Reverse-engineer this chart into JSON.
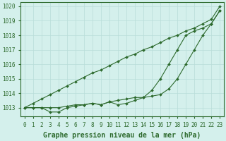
{
  "hours": [
    0,
    1,
    2,
    3,
    4,
    5,
    6,
    7,
    8,
    9,
    10,
    11,
    12,
    13,
    14,
    15,
    16,
    17,
    18,
    19,
    20,
    21,
    22,
    23
  ],
  "line1": [
    1013.0,
    1013.0,
    1013.0,
    1013.0,
    1013.0,
    1013.1,
    1013.2,
    1013.2,
    1013.3,
    1013.2,
    1013.4,
    1013.5,
    1013.6,
    1013.7,
    1013.7,
    1013.8,
    1013.9,
    1014.3,
    1015.0,
    1016.0,
    1017.0,
    1018.0,
    1018.8,
    1019.7
  ],
  "line2": [
    1013.0,
    1013.0,
    1013.0,
    1012.7,
    1012.7,
    1013.0,
    1013.1,
    1013.2,
    1013.3,
    1013.2,
    1013.4,
    1013.2,
    1013.3,
    1013.5,
    1013.7,
    1014.2,
    1015.0,
    1016.0,
    1017.0,
    1018.0,
    1018.3,
    1018.5,
    1018.8,
    1019.7
  ],
  "line3": [
    1013.0,
    1013.3,
    1013.6,
    1013.9,
    1014.2,
    1014.5,
    1014.8,
    1015.1,
    1015.4,
    1015.6,
    1015.9,
    1016.2,
    1016.5,
    1016.7,
    1017.0,
    1017.2,
    1017.5,
    1017.8,
    1018.0,
    1018.3,
    1018.5,
    1018.8,
    1019.1,
    1020.0
  ],
  "line_color": "#2d6a2d",
  "bg_color": "#d4f0ec",
  "grid_color": "#b8ddd8",
  "xlabel": "Graphe pression niveau de la mer (hPa)",
  "ylim": [
    1012.4,
    1020.3
  ],
  "xlim": [
    -0.5,
    23.5
  ],
  "yticks": [
    1013,
    1014,
    1015,
    1016,
    1017,
    1018,
    1019,
    1020
  ],
  "xticks": [
    0,
    1,
    2,
    3,
    4,
    5,
    6,
    7,
    8,
    9,
    10,
    11,
    12,
    13,
    14,
    15,
    16,
    17,
    18,
    19,
    20,
    21,
    22,
    23
  ],
  "tick_fontsize": 5.5,
  "xlabel_fontsize": 7.0,
  "marker_size": 2.0,
  "line_width": 0.8
}
